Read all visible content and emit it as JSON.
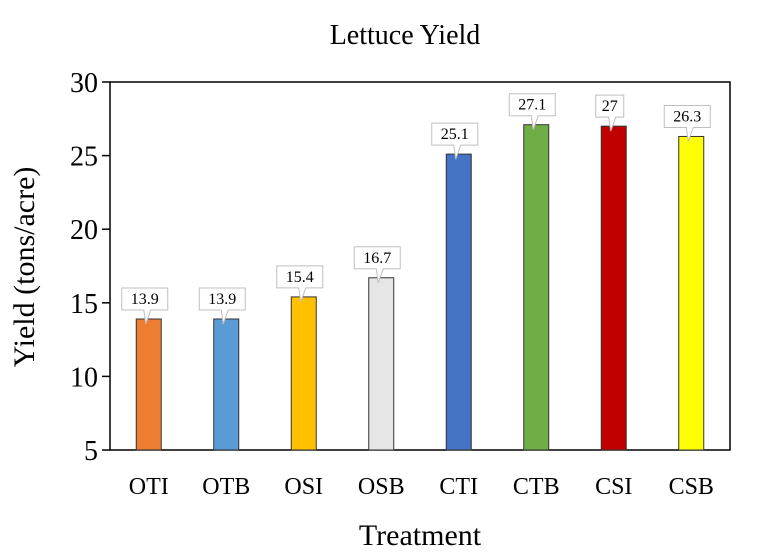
{
  "chart_data": {
    "type": "bar",
    "title": "Lettuce Yield",
    "xlabel": "Treatment",
    "ylabel": "Yield (tons/acre)",
    "ylim": [
      5,
      30
    ],
    "yticks": [
      5,
      10,
      15,
      20,
      25,
      30
    ],
    "grid": false,
    "categories": [
      "OTI",
      "OTB",
      "OSI",
      "OSB",
      "CTI",
      "CTB",
      "CSI",
      "CSB"
    ],
    "values": [
      13.9,
      13.9,
      15.4,
      16.7,
      25.1,
      27.1,
      27,
      26.3
    ],
    "data_labels": [
      "13.9",
      "13.9",
      "15.4",
      "16.7",
      "25.1",
      "27.1",
      "27",
      "26.3"
    ],
    "colors": [
      "#ED7D31",
      "#5B9BD5",
      "#FFC000",
      "#E7E6E6",
      "#4472C4",
      "#70AD47",
      "#C00000",
      "#FFFF00"
    ]
  }
}
